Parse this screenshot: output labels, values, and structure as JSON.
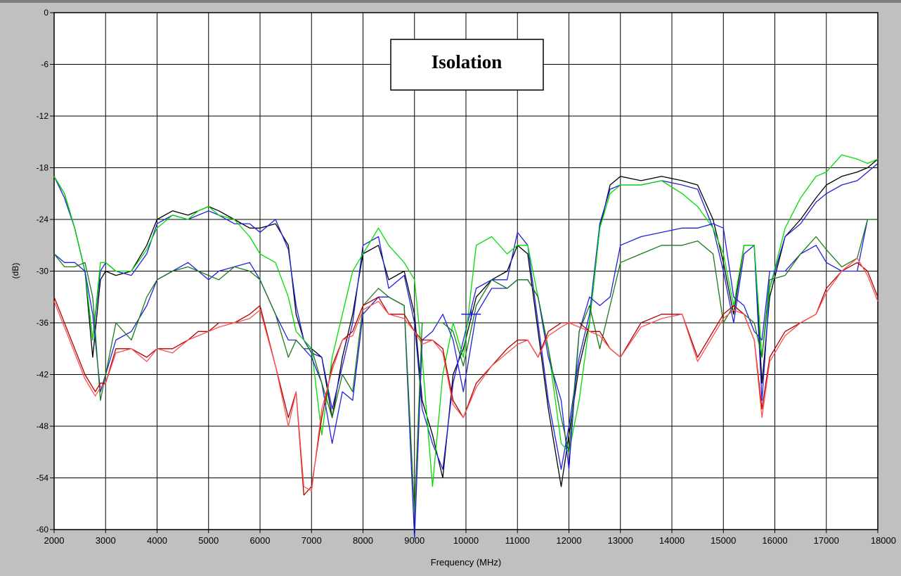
{
  "chart_data": {
    "type": "line",
    "title": "Isolation",
    "xlabel": "Frequency (MHz)",
    "ylabel": "(dB)",
    "xlim": [
      2000,
      18000
    ],
    "ylim": [
      -60,
      0
    ],
    "xticks": [
      2000,
      3000,
      4000,
      5000,
      6000,
      7000,
      8000,
      9000,
      10000,
      11000,
      12000,
      13000,
      14000,
      15000,
      16000,
      17000,
      18000
    ],
    "yticks": [
      0,
      -6,
      -12,
      -18,
      -24,
      -30,
      -36,
      -42,
      -48,
      -54,
      -60
    ],
    "grid": true,
    "legend": "none",
    "colors": {
      "background": "#c0c0c0",
      "plot_area": "#ffffff",
      "grid": "#000000"
    },
    "series": [
      {
        "color": "#000000",
        "x": [
          2000,
          2200,
          2400,
          2600,
          2750,
          2900,
          3000,
          3200,
          3500,
          3800,
          4000,
          4300,
          4600,
          4800,
          5000,
          5200,
          5500,
          5800,
          6000,
          6300,
          6550,
          6700,
          6850,
          7000,
          7200,
          7400,
          7600,
          7800,
          8000,
          8300,
          8500,
          8800,
          9000,
          9150,
          9350,
          9550,
          9750,
          9950,
          10200,
          10500,
          10800,
          11000,
          11200,
          11400,
          11600,
          11850,
          12000,
          12200,
          12400,
          12600,
          12800,
          13000,
          13400,
          13800,
          14200,
          14500,
          14800,
          15000,
          15200,
          15400,
          15600,
          15750,
          15900,
          16200,
          16500,
          16800,
          17000,
          17300,
          17600,
          17800,
          18000
        ],
        "y": [
          -19,
          -21,
          -25,
          -30,
          -40,
          -31,
          -30,
          -30.5,
          -30,
          -27,
          -24,
          -23,
          -23.5,
          -23,
          -22.5,
          -23,
          -24,
          -25,
          -25,
          -24.5,
          -27,
          -35,
          -38,
          -39,
          -40,
          -47,
          -40,
          -35,
          -28,
          -27,
          -31,
          -30,
          -35,
          -45,
          -49,
          -54,
          -42,
          -39,
          -33,
          -31,
          -30,
          -27,
          -28,
          -37,
          -46,
          -55,
          -49,
          -41,
          -36,
          -25,
          -20,
          -19,
          -19.5,
          -19,
          -19.5,
          -20,
          -24,
          -29,
          -35,
          -27,
          -27,
          -43,
          -33,
          -26,
          -24,
          -21.5,
          -20,
          -19,
          -18.5,
          -18,
          -17
        ]
      },
      {
        "color": "#2020e0",
        "x": [
          2000,
          2200,
          2400,
          2600,
          2750,
          2900,
          3000,
          3200,
          3500,
          3800,
          4000,
          4300,
          4600,
          4800,
          5000,
          5200,
          5500,
          5800,
          6000,
          6300,
          6550,
          6700,
          6850,
          7000,
          7200,
          7400,
          7600,
          7800,
          8000,
          8300,
          8500,
          8800,
          9000,
          9150,
          9350,
          9550,
          9750,
          9950,
          10200,
          10500,
          10800,
          11000,
          11200,
          11400,
          11600,
          11850,
          12000,
          12200,
          12400,
          12600,
          12800,
          13000,
          13400,
          13800,
          14200,
          14500,
          14800,
          15000,
          15200,
          15400,
          15600,
          15750,
          15900,
          16200,
          16500,
          16800,
          17000,
          17300,
          17600,
          17800,
          18000
        ],
        "y": [
          -19,
          -21.5,
          -25,
          -30,
          -38,
          -30,
          -29,
          -30,
          -30.5,
          -28,
          -24.5,
          -23.5,
          -24,
          -23.5,
          -23,
          -23.5,
          -24.5,
          -24.5,
          -25.5,
          -24,
          -27.5,
          -34,
          -38,
          -39.5,
          -40,
          -46,
          -41,
          -36,
          -27,
          -26,
          -32,
          -30.5,
          -36,
          -46,
          -50,
          -53,
          -43,
          -38,
          -32,
          -31,
          -31,
          -25.5,
          -27,
          -36,
          -45,
          -53,
          -48,
          -40,
          -35,
          -24.5,
          -20.5,
          -20,
          -20,
          -19.5,
          -20,
          -20.5,
          -25,
          -30,
          -36,
          -28,
          -27,
          -45,
          -32,
          -26,
          -24.5,
          -22,
          -21,
          -20,
          -19.5,
          -18.5,
          -17.5
        ]
      },
      {
        "color": "#00dd00",
        "x": [
          2000,
          2200,
          2400,
          2600,
          2750,
          2900,
          3000,
          3200,
          3500,
          3800,
          4000,
          4300,
          4600,
          4800,
          5000,
          5200,
          5500,
          5800,
          6000,
          6300,
          6550,
          6700,
          6850,
          7000,
          7200,
          7400,
          7600,
          7800,
          8000,
          8300,
          8500,
          8800,
          9000,
          9150,
          9350,
          9550,
          9750,
          9950,
          10200,
          10500,
          10800,
          11000,
          11200,
          11400,
          11600,
          11850,
          12000,
          12200,
          12400,
          12600,
          12800,
          13000,
          13400,
          13800,
          14200,
          14500,
          14800,
          15000,
          15200,
          15400,
          15600,
          15750,
          15900,
          16200,
          16500,
          16800,
          17000,
          17300,
          17600,
          17800,
          18000
        ],
        "y": [
          -19,
          -21,
          -25,
          -30,
          -38,
          -29,
          -29,
          -30,
          -30,
          -27.5,
          -25,
          -23.5,
          -24,
          -23,
          -22.5,
          -23.5,
          -24,
          -26,
          -28,
          -29,
          -33,
          -37,
          -38,
          -39,
          -49,
          -40,
          -35,
          -30,
          -28,
          -25,
          -27,
          -29,
          -31,
          -40,
          -55,
          -42,
          -36,
          -40,
          -27,
          -26,
          -28,
          -27,
          -27,
          -33,
          -39,
          -50,
          -51,
          -45,
          -36,
          -25,
          -21,
          -20,
          -20,
          -19.5,
          -21,
          -22.5,
          -25,
          -28,
          -34,
          -27,
          -27,
          -40,
          -32,
          -25,
          -21.5,
          -19,
          -18.5,
          -16.5,
          -17,
          -17.5,
          -17
        ]
      },
      {
        "color": "#2020e0",
        "x": [
          2000,
          2200,
          2400,
          2600,
          2750,
          2900,
          3000,
          3200,
          3500,
          3800,
          4000,
          4300,
          4600,
          4800,
          5000,
          5200,
          5500,
          5800,
          6000,
          6300,
          6550,
          6700,
          6850,
          7000,
          7200,
          7400,
          7600,
          7800,
          8000,
          8300,
          8500,
          8800,
          9000,
          9150,
          9350,
          9550,
          9750,
          9950,
          10200,
          10500,
          10800,
          11000,
          11200,
          11400,
          11600,
          11850,
          12000,
          12200,
          12400,
          12600,
          12800,
          13000,
          13400,
          13800,
          14200,
          14500,
          14800,
          15000,
          15200,
          15400,
          15600,
          15750,
          15900,
          16200,
          16500,
          16800,
          17000,
          17300,
          17600,
          17800,
          18000
        ],
        "y": [
          -28,
          -29,
          -29,
          -30,
          -35,
          -44,
          -42,
          -38,
          -37,
          -34,
          -31,
          -30,
          -29,
          -30,
          -31,
          -30,
          -29.5,
          -29,
          -31,
          -35,
          -38,
          -38,
          -39,
          -40,
          -43,
          -50,
          -44,
          -45,
          -35,
          -33,
          -33,
          -34,
          -61,
          -38,
          -37,
          -35,
          -38,
          -44,
          -35,
          -32,
          -32,
          -31,
          -31,
          -33,
          -40,
          -45,
          -53,
          -37,
          -33,
          -34,
          -33,
          -27,
          -26,
          -25.5,
          -25,
          -25,
          -24.5,
          -25,
          -33,
          -34,
          -37,
          -38,
          -30,
          -30,
          -28,
          -27,
          -29,
          -30,
          -30,
          -24,
          -24
        ]
      },
      {
        "color": "#1a7a1a",
        "x": [
          2000,
          2200,
          2400,
          2600,
          2750,
          2900,
          3000,
          3200,
          3500,
          3800,
          4000,
          4300,
          4600,
          4800,
          5000,
          5200,
          5500,
          5800,
          6000,
          6300,
          6550,
          6700,
          6850,
          7000,
          7200,
          7400,
          7600,
          7800,
          8000,
          8300,
          8500,
          8800,
          9000,
          9150,
          9350,
          9550,
          9750,
          9950,
          10200,
          10500,
          10800,
          11000,
          11200,
          11400,
          11600,
          11850,
          12000,
          12200,
          12400,
          12600,
          12800,
          13000,
          13400,
          13800,
          14200,
          14500,
          14800,
          15000,
          15200,
          15400,
          15600,
          15750,
          15900,
          16200,
          16500,
          16800,
          17000,
          17300,
          17600,
          17800,
          18000
        ],
        "y": [
          -28,
          -29.5,
          -29.5,
          -29,
          -33,
          -45,
          -42,
          -36,
          -38,
          -33,
          -31,
          -30,
          -29.5,
          -30,
          -30.5,
          -31,
          -29.5,
          -30,
          -31,
          -35,
          -40,
          -38,
          -39,
          -39,
          -43,
          -47,
          -42,
          -44,
          -34,
          -32,
          -33,
          -34,
          -58,
          -36,
          -36,
          -36,
          -37,
          -41,
          -34,
          -31,
          -32,
          -31,
          -31,
          -33,
          -39,
          -47,
          -51,
          -37,
          -34,
          -39,
          -34,
          -29,
          -28,
          -27,
          -27,
          -26.5,
          -28,
          -36,
          -34,
          -35,
          -36,
          -40,
          -31,
          -30.5,
          -28,
          -26,
          -27.5,
          -29.5,
          -28.5,
          -24,
          -24
        ]
      },
      {
        "color": "#b00000",
        "x": [
          2000,
          2200,
          2400,
          2600,
          2800,
          2900,
          3000,
          3200,
          3500,
          3800,
          4000,
          4300,
          4600,
          4800,
          5000,
          5200,
          5500,
          5800,
          6000,
          6300,
          6550,
          6700,
          6850,
          7000,
          7200,
          7400,
          7600,
          7800,
          8000,
          8300,
          8500,
          8800,
          9000,
          9150,
          9350,
          9550,
          9750,
          9950,
          10200,
          10500,
          10800,
          11000,
          11200,
          11400,
          11600,
          11850,
          12000,
          12200,
          12400,
          12600,
          12800,
          13000,
          13400,
          13800,
          14200,
          14500,
          14800,
          15000,
          15200,
          15400,
          15600,
          15750,
          15900,
          16200,
          16500,
          16800,
          17000,
          17300,
          17600,
          17800,
          18000
        ],
        "y": [
          -33,
          -36,
          -39,
          -42,
          -44,
          -43,
          -43,
          -39,
          -39,
          -40,
          -39,
          -39,
          -38,
          -37,
          -37,
          -36,
          -36,
          -35,
          -34,
          -41,
          -47,
          -44,
          -56,
          -55,
          -47,
          -41,
          -38,
          -37,
          -34,
          -33,
          -35,
          -35,
          -37,
          -38,
          -38,
          -39,
          -45,
          -47,
          -43,
          -41,
          -39,
          -38,
          -38,
          -40,
          -37,
          -36,
          -36,
          -36,
          -37,
          -37,
          -39,
          -40,
          -36,
          -35,
          -35,
          -40,
          -37,
          -35,
          -34,
          -35,
          -38,
          -46,
          -40,
          -37,
          -36,
          -35,
          -32,
          -30,
          -29,
          -30,
          -33
        ]
      },
      {
        "color": "#ff5050",
        "x": [
          2000,
          2200,
          2400,
          2600,
          2800,
          2900,
          3000,
          3200,
          3500,
          3800,
          4000,
          4300,
          4600,
          4800,
          5000,
          5200,
          5500,
          5800,
          6000,
          6300,
          6550,
          6700,
          6850,
          7000,
          7200,
          7400,
          7600,
          7800,
          8000,
          8300,
          8500,
          8800,
          9000,
          9150,
          9350,
          9550,
          9750,
          9950,
          10200,
          10500,
          10800,
          11000,
          11200,
          11400,
          11600,
          11850,
          12000,
          12200,
          12400,
          12600,
          12800,
          13000,
          13400,
          13800,
          14200,
          14500,
          14800,
          15000,
          15200,
          15400,
          15600,
          15750,
          15900,
          16200,
          16500,
          16800,
          17000,
          17300,
          17600,
          17800,
          18000
        ],
        "y": [
          -33.5,
          -36.5,
          -39.5,
          -42.5,
          -44.5,
          -43.5,
          -43,
          -39.5,
          -39,
          -40.5,
          -39,
          -39.5,
          -38,
          -37.5,
          -37,
          -36.5,
          -36,
          -35.5,
          -34.5,
          -41,
          -48,
          -44,
          -55,
          -55.5,
          -46,
          -41.5,
          -38,
          -37.5,
          -34.5,
          -33.5,
          -35,
          -35.5,
          -37,
          -38.5,
          -38,
          -39.5,
          -45.5,
          -47,
          -43.5,
          -41,
          -39.5,
          -38.5,
          -38,
          -40,
          -37.5,
          -36.5,
          -36,
          -36.5,
          -37,
          -37.5,
          -39,
          -40,
          -36.5,
          -35.5,
          -35,
          -40.5,
          -37.5,
          -35.5,
          -34.5,
          -35,
          -38,
          -47,
          -40.5,
          -37.5,
          -36,
          -35,
          -32.5,
          -30,
          -28.5,
          -30.5,
          -33.5
        ]
      }
    ],
    "marker": {
      "x": 10100,
      "y": -35
    }
  }
}
